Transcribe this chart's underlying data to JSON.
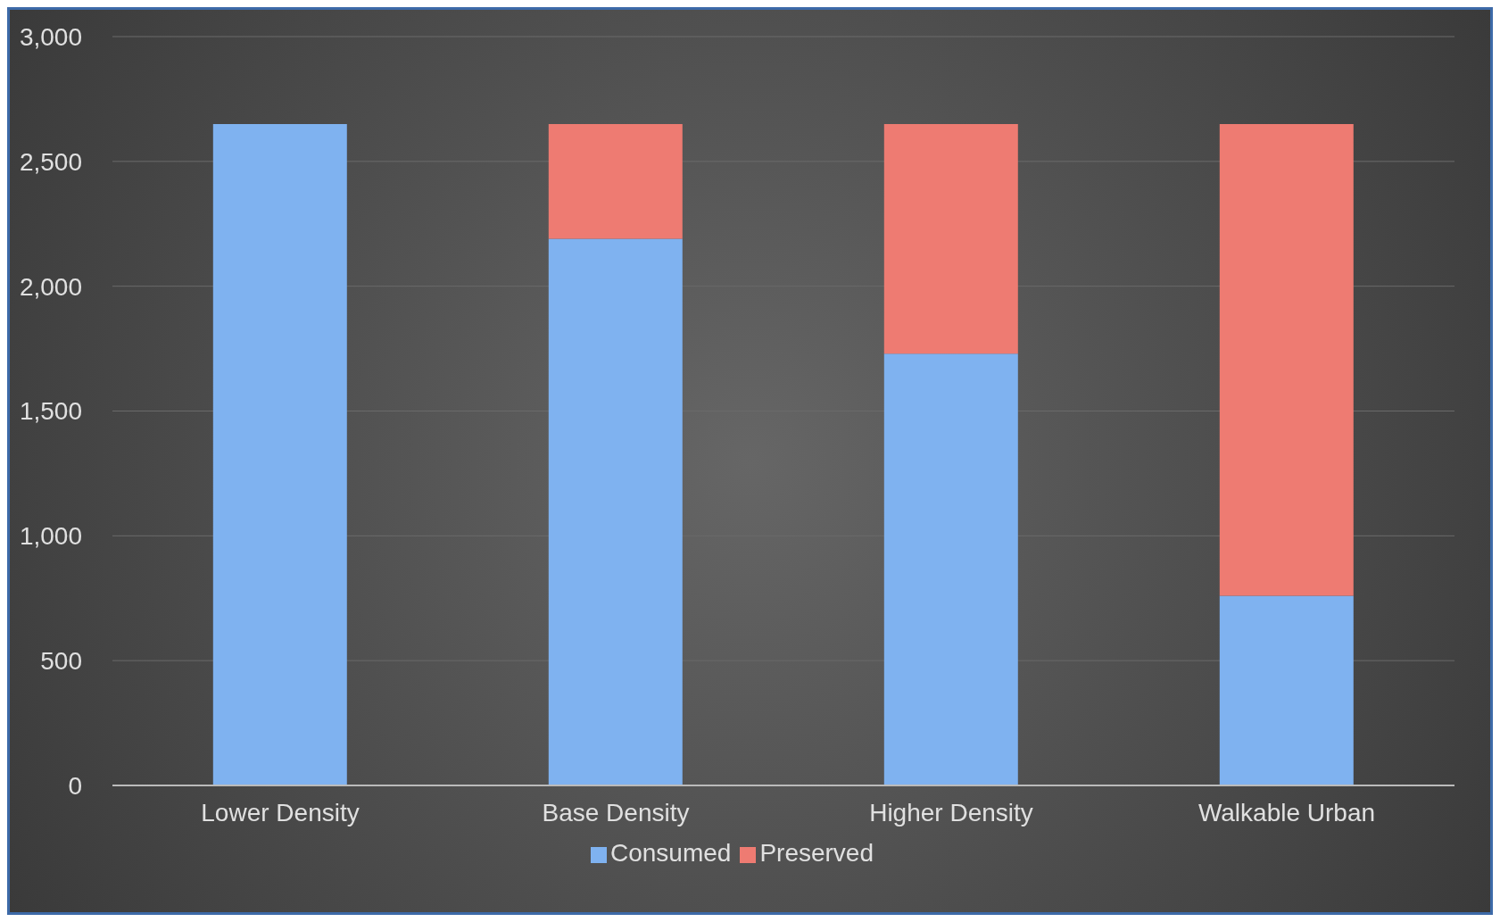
{
  "chart_data": {
    "type": "bar",
    "stacked": true,
    "categories": [
      "Lower Density",
      "Base Density",
      "Higher Density",
      "Walkable Urban"
    ],
    "series": [
      {
        "name": "Consumed",
        "color": "#7fb2f0",
        "values": [
          2650,
          2190,
          1730,
          760
        ]
      },
      {
        "name": "Preserved",
        "color": "#ee7b72",
        "values": [
          0,
          460,
          920,
          1890
        ]
      }
    ],
    "ylim": [
      0,
      3000
    ],
    "yticks": [
      0,
      500,
      {
        "value": 1000,
        "label": "1,000"
      },
      {
        "value": 1500,
        "label": "1,500"
      },
      {
        "value": 2000,
        "label": "2,000"
      },
      {
        "value": 2500,
        "label": "2,500"
      },
      {
        "value": 3000,
        "label": "3,000"
      }
    ],
    "grid": "y",
    "legend": "bottom"
  }
}
